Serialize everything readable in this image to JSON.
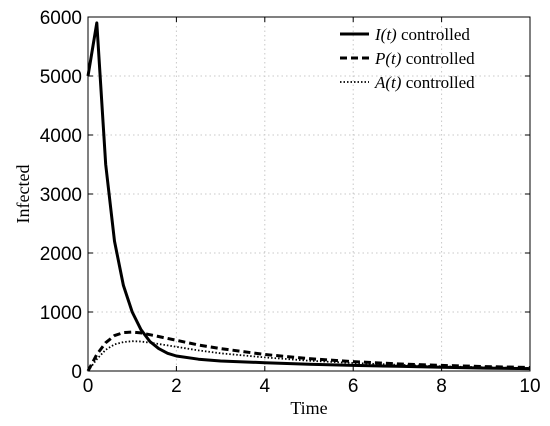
{
  "chart_data": {
    "type": "line",
    "xlabel": "Time",
    "ylabel": "Infected",
    "xlim": [
      0,
      10
    ],
    "ylim": [
      0,
      6000
    ],
    "xticks": [
      "0",
      "2",
      "4",
      "6",
      "8",
      "10"
    ],
    "yticks": [
      "0",
      "1000",
      "2000",
      "3000",
      "4000",
      "5000",
      "6000"
    ],
    "grid": true,
    "legend_position": "top-right",
    "series": [
      {
        "name": "I(t) controlled",
        "legend_var": "I(t)",
        "legend_rest": " controlled",
        "style": "solid",
        "x": [
          0,
          0.2,
          0.4,
          0.6,
          0.8,
          1.0,
          1.2,
          1.4,
          1.6,
          1.8,
          2.0,
          2.5,
          3.0,
          4.0,
          5.0,
          6.0,
          7.0,
          8.0,
          9.0,
          10.0
        ],
        "y": [
          5000,
          5900,
          3500,
          2200,
          1450,
          1000,
          700,
          500,
          380,
          300,
          255,
          200,
          170,
          140,
          115,
          95,
          80,
          65,
          50,
          40
        ]
      },
      {
        "name": "P(t) controlled",
        "legend_var": "P(t)",
        "legend_rest": " controlled",
        "style": "dashed",
        "x": [
          0,
          0.2,
          0.4,
          0.6,
          0.8,
          1.0,
          1.2,
          1.5,
          2.0,
          2.5,
          3.0,
          4.0,
          5.0,
          6.0,
          7.0,
          8.0,
          9.0,
          10.0
        ],
        "y": [
          0,
          280,
          480,
          600,
          650,
          660,
          645,
          600,
          520,
          440,
          380,
          280,
          210,
          160,
          120,
          95,
          75,
          60
        ]
      },
      {
        "name": "A(t) controlled",
        "legend_var": "A(t)",
        "legend_rest": " controlled",
        "style": "dotted",
        "x": [
          0,
          0.2,
          0.4,
          0.6,
          0.8,
          1.0,
          1.2,
          1.5,
          2.0,
          2.5,
          3.0,
          4.0,
          5.0,
          6.0,
          7.0,
          8.0,
          9.0,
          10.0
        ],
        "y": [
          0,
          200,
          360,
          450,
          490,
          505,
          500,
          470,
          410,
          350,
          300,
          230,
          175,
          135,
          105,
          80,
          62,
          50
        ]
      }
    ]
  }
}
